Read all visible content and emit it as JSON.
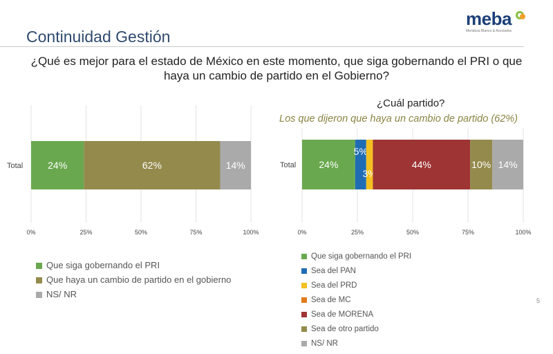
{
  "header": {
    "title": "Continuidad Gestión",
    "question": "¿Qué es mejor para el estado de México en este momento, que siga gobernando el PRI o que haya un cambio de partido en el Gobierno?",
    "logo_text": "meba",
    "logo_sub": "Mendoza Blanco & Asociados"
  },
  "right_subtitle": "¿Cuál partido?",
  "right_note": "Los que dijeron que haya un cambio de partido (62%)",
  "page_number": "5",
  "chart_data": [
    {
      "type": "bar",
      "orientation": "horizontal",
      "stacked": true,
      "categories": [
        "Total"
      ],
      "xlim": [
        0,
        100
      ],
      "ticks": [
        "0%",
        "25%",
        "50%",
        "75%",
        "100%"
      ],
      "series": [
        {
          "name": "Que siga gobernando el PRI",
          "values": [
            24
          ],
          "label": "24%",
          "color": "#6aa84f"
        },
        {
          "name": "Que haya un cambio de partido en el gobierno",
          "values": [
            62
          ],
          "label": "62%",
          "color": "#948a4c"
        },
        {
          "name": "NS/ NR",
          "values": [
            14
          ],
          "label": "14%",
          "color": "#aaaaaa"
        }
      ],
      "legend_placement": "bottom"
    },
    {
      "type": "bar",
      "orientation": "horizontal",
      "stacked": true,
      "categories": [
        "Total"
      ],
      "xlim": [
        0,
        100
      ],
      "ticks": [
        "0%",
        "25%",
        "50%",
        "75%",
        "100%"
      ],
      "series": [
        {
          "name": "Que siga gobernando el PRI",
          "values": [
            24
          ],
          "label": "24%",
          "color": "#6aa84f"
        },
        {
          "name": "Sea del PAN",
          "values": [
            5
          ],
          "label": "5%",
          "color": "#1f6cb4"
        },
        {
          "name": "Sea del PRD",
          "values": [
            3
          ],
          "label": "3%",
          "color": "#f4c020"
        },
        {
          "name": "Sea de MC",
          "values": [
            0
          ],
          "label": "",
          "color": "#e07b1e"
        },
        {
          "name": "Sea de MORENA",
          "values": [
            44
          ],
          "label": "44%",
          "color": "#9e3434"
        },
        {
          "name": "Sea de otro partido",
          "values": [
            10
          ],
          "label": "10%",
          "color": "#948a4c"
        },
        {
          "name": "NS/ NR",
          "values": [
            14
          ],
          "label": "14%",
          "color": "#aaaaaa"
        }
      ],
      "legend_placement": "bottom"
    }
  ]
}
